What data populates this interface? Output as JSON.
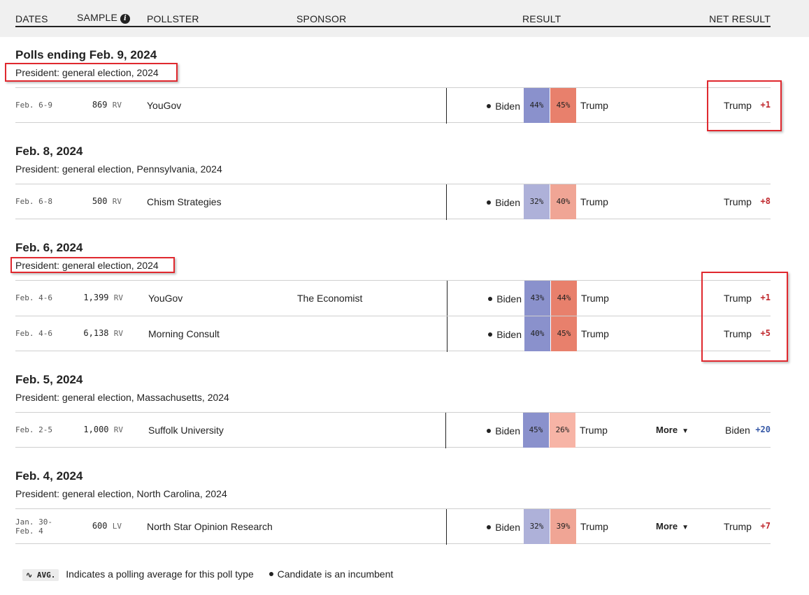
{
  "header": {
    "dates": "DATES",
    "sample": "SAMPLE",
    "sample_info_icon": "i",
    "pollster": "POLLSTER",
    "sponsor": "SPONSOR",
    "result": "RESULT",
    "net_result": "NET RESULT"
  },
  "colors": {
    "biden_dark": "#8a91cc",
    "biden_light": "#aeb1d9",
    "trump_dark": "#e8806c",
    "trump_light": "#f0a595",
    "trump_pale": "#f7b4a6",
    "rep_text": "#c0282d",
    "dem_text": "#3558a6",
    "highlight": "#e0282e"
  },
  "sections": [
    {
      "date": "Polls ending Feb. 9, 2024",
      "subtitle": "President: general election, 2024",
      "polls": [
        {
          "dates": "Feb. 6-9",
          "sample": "869",
          "sample_unit": "RV",
          "pollster": "YouGov",
          "sponsor": "",
          "cand_left": "Biden",
          "pct_left": "44%",
          "pct_right": "45%",
          "cand_right": "Trump",
          "net_leader": "Trump",
          "net_margin": "+1"
        }
      ]
    },
    {
      "date": "Feb. 8, 2024",
      "subtitle": "President: general election, Pennsylvania, 2024",
      "polls": [
        {
          "dates": "Feb. 6-8",
          "sample": "500",
          "sample_unit": "RV",
          "pollster": "Chism Strategies",
          "sponsor": "",
          "cand_left": "Biden",
          "pct_left": "32%",
          "pct_right": "40%",
          "cand_right": "Trump",
          "net_leader": "Trump",
          "net_margin": "+8"
        }
      ]
    },
    {
      "date": "Feb. 6, 2024",
      "subtitle": "President: general election, 2024",
      "polls": [
        {
          "dates": "Feb. 4-6",
          "sample": "1,399",
          "sample_unit": "RV",
          "pollster": "YouGov",
          "sponsor": "The Economist",
          "cand_left": "Biden",
          "pct_left": "43%",
          "pct_right": "44%",
          "cand_right": "Trump",
          "net_leader": "Trump",
          "net_margin": "+1"
        },
        {
          "dates": "Feb. 4-6",
          "sample": "6,138",
          "sample_unit": "RV",
          "pollster": "Morning Consult",
          "sponsor": "",
          "cand_left": "Biden",
          "pct_left": "40%",
          "pct_right": "45%",
          "cand_right": "Trump",
          "net_leader": "Trump",
          "net_margin": "+5"
        }
      ]
    },
    {
      "date": "Feb. 5, 2024",
      "subtitle": "President: general election, Massachusetts, 2024",
      "polls": [
        {
          "dates": "Feb. 2-5",
          "sample": "1,000",
          "sample_unit": "RV",
          "pollster": "Suffolk University",
          "sponsor": "",
          "cand_left": "Biden",
          "pct_left": "45%",
          "pct_right": "26%",
          "cand_right": "Trump",
          "more": "More",
          "net_leader": "Biden",
          "net_margin": "+20"
        }
      ]
    },
    {
      "date": "Feb. 4, 2024",
      "subtitle": "President: general election, North Carolina, 2024",
      "polls": [
        {
          "dates_line1": "Jan. 30-",
          "dates_line2": "Feb. 4",
          "sample": "600",
          "sample_unit": "LV",
          "pollster": "North Star Opinion Research",
          "sponsor": "",
          "cand_left": "Biden",
          "pct_left": "32%",
          "pct_right": "39%",
          "cand_right": "Trump",
          "more": "More",
          "net_leader": "Trump",
          "net_margin": "+7"
        }
      ]
    }
  ],
  "legend": {
    "avg_chip": "AVG.",
    "avg_text": "Indicates a polling average for this poll type",
    "incumbent_text": "Candidate is an incumbent"
  }
}
